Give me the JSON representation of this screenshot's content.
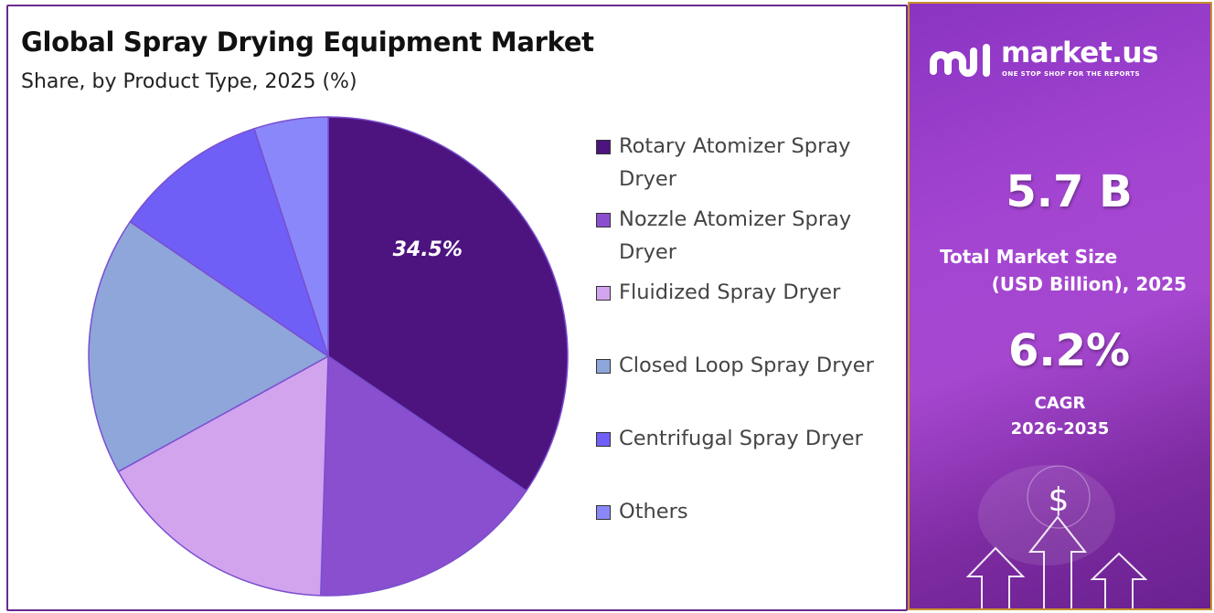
{
  "title": "Global Spray Drying Equipment Market",
  "subtitle": "Share, by Product Type, 2025 (%)",
  "chart_data": {
    "type": "pie",
    "title": "Global Spray Drying Equipment Market",
    "subtitle": "Share, by Product Type, 2025 (%)",
    "labels": [
      "Rotary Atomizer Spray Dryer",
      "Nozzle Atomizer Spray Dryer",
      "Fluidized Spray Dryer",
      "Closed Loop Spray Dryer",
      "Centrifugal Spray Dryer",
      "Others"
    ],
    "values": [
      34.5,
      16.0,
      16.5,
      17.5,
      10.5,
      5.0
    ],
    "colors": [
      "#4d1480",
      "#8a4fcf",
      "#d2a4ee",
      "#8ea6da",
      "#6f5ff6",
      "#8a87fa"
    ],
    "data_labels": [
      "34.5%",
      "",
      "",
      "",
      "",
      ""
    ],
    "legend_position": "right"
  },
  "side_panel": {
    "brand": "market.us",
    "tagline": "ONE STOP SHOP FOR THE REPORTS",
    "market_size": "5.7 B",
    "market_size_label_line1": "Total Market Size",
    "market_size_label_line2": "(USD Billion), 2025",
    "cagr": "6.2%",
    "cagr_label": "CAGR",
    "cagr_period": "2026-2035",
    "icons": [
      "market-us-logo-icon",
      "dollar-coin-icon",
      "up-arrow-icon"
    ]
  }
}
